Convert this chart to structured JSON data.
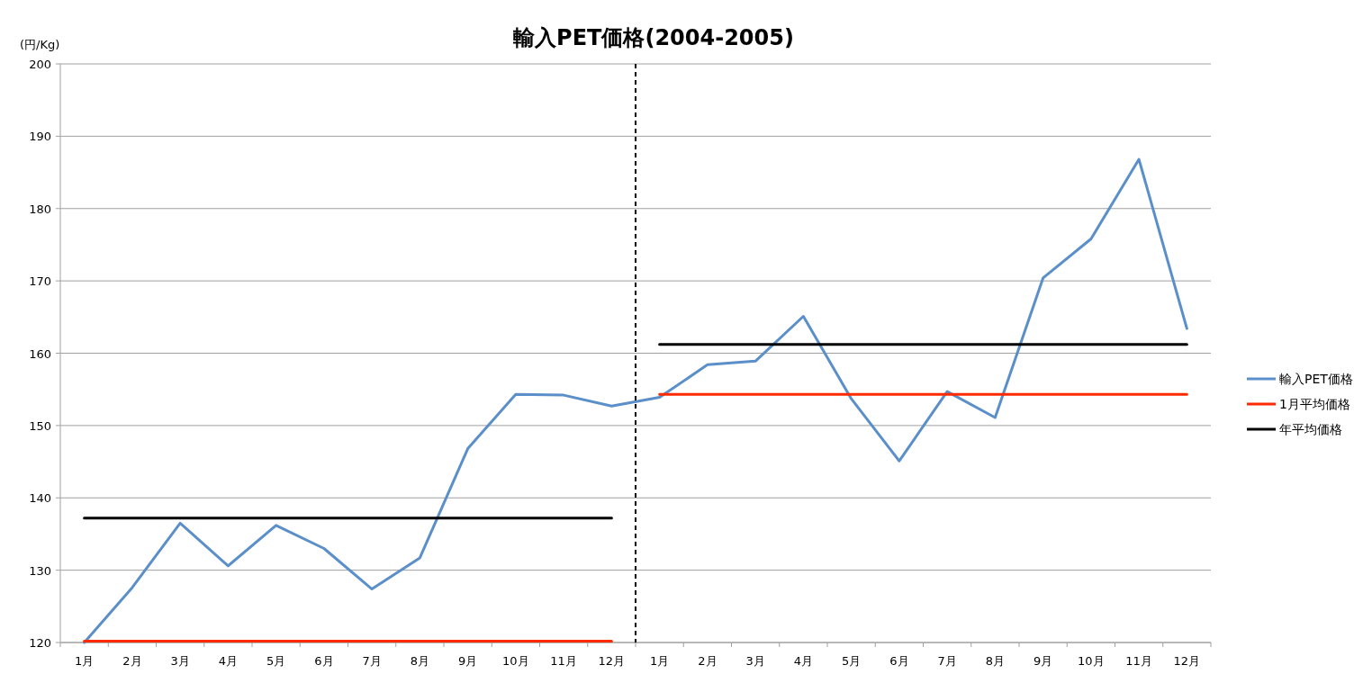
{
  "chart_data": {
    "type": "line",
    "title": "輸入PET価格(2004-2005)",
    "ylabel": "(円/Kg)",
    "categories": [
      "1月",
      "2月",
      "3月",
      "4月",
      "5月",
      "6月",
      "7月",
      "8月",
      "9月",
      "10月",
      "11月",
      "12月",
      "1月",
      "2月",
      "3月",
      "4月",
      "5月",
      "6月",
      "7月",
      "8月",
      "9月",
      "10月",
      "11月",
      "12月"
    ],
    "series": [
      {
        "name": "輸入PET価格",
        "color": "#5b8fc9",
        "values": [
          120,
          127.6,
          136.5,
          130.6,
          136.2,
          133.0,
          127.4,
          131.7,
          146.8,
          154.3,
          154.2,
          152.7,
          153.9,
          158.4,
          158.9,
          165.1,
          153.7,
          145.1,
          154.7,
          151.1,
          170.4,
          175.8,
          186.8,
          163.4
        ]
      },
      {
        "name": "1月平均価格",
        "color": "#ff2a00",
        "values": [
          120.2,
          120.2,
          120.2,
          120.2,
          120.2,
          120.2,
          120.2,
          120.2,
          120.2,
          120.2,
          120.2,
          120.2,
          154.3,
          154.3,
          154.3,
          154.3,
          154.3,
          154.3,
          154.3,
          154.3,
          154.3,
          154.3,
          154.3,
          154.3
        ]
      },
      {
        "name": "年平均価格",
        "color": "#000000",
        "values": [
          137.2,
          137.2,
          137.2,
          137.2,
          137.2,
          137.2,
          137.2,
          137.2,
          137.2,
          137.2,
          137.2,
          137.2,
          161.2,
          161.2,
          161.2,
          161.2,
          161.2,
          161.2,
          161.2,
          161.2,
          161.2,
          161.2,
          161.2,
          161.2
        ]
      }
    ],
    "ylim": [
      120,
      200
    ],
    "yticks": [
      120,
      130,
      140,
      150,
      160,
      170,
      180,
      190,
      200
    ],
    "ref_lines": [
      {
        "axis": "x",
        "value": "12月",
        "color": "#000000",
        "line_style": "dashed"
      }
    ],
    "grid": "y",
    "legend": "right",
    "marker": "none",
    "line_style": "solid"
  }
}
